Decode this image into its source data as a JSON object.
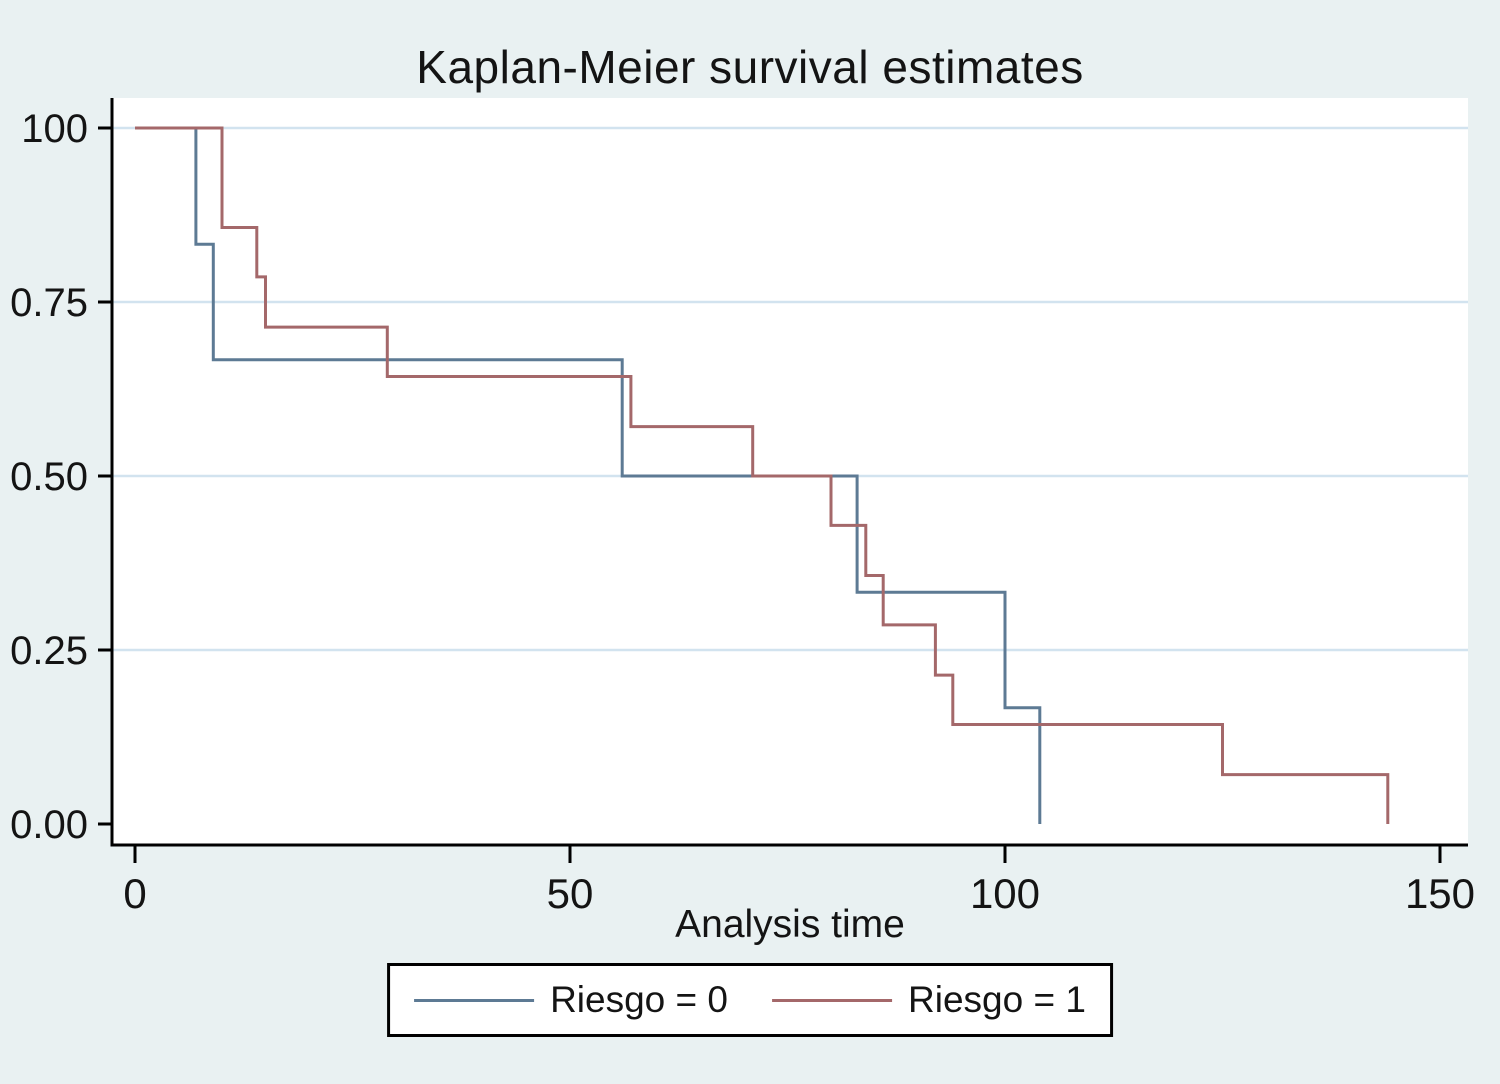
{
  "chart_data": {
    "type": "line",
    "subtype": "kaplan-meier-step",
    "title": "Kaplan-Meier survival estimates",
    "xlabel": "Analysis time",
    "ylabel": "",
    "xlim": [
      0,
      150
    ],
    "ylim": [
      0,
      1
    ],
    "x_ticks": [
      0,
      50,
      100,
      150
    ],
    "y_ticks": [
      {
        "value": 1.0,
        "label": "100"
      },
      {
        "value": 0.75,
        "label": "0.75"
      },
      {
        "value": 0.5,
        "label": "0.50"
      },
      {
        "value": 0.25,
        "label": "0.25"
      },
      {
        "value": 0.0,
        "label": "0.00"
      }
    ],
    "grid": "horizontal",
    "legend_position": "bottom",
    "series": [
      {
        "name": "Riesgo = 0",
        "color": "#5d7a94",
        "points": [
          [
            0,
            1.0
          ],
          [
            7,
            1.0
          ],
          [
            7,
            0.833
          ],
          [
            9,
            0.833
          ],
          [
            9,
            0.667
          ],
          [
            56,
            0.667
          ],
          [
            56,
            0.5
          ],
          [
            83,
            0.5
          ],
          [
            83,
            0.333
          ],
          [
            100,
            0.333
          ],
          [
            100,
            0.167
          ],
          [
            104,
            0.167
          ],
          [
            104,
            0.0
          ]
        ]
      },
      {
        "name": "Riesgo = 1",
        "color": "#a4686a",
        "points": [
          [
            0,
            1.0
          ],
          [
            10,
            1.0
          ],
          [
            10,
            0.857
          ],
          [
            14,
            0.857
          ],
          [
            14,
            0.786
          ],
          [
            15,
            0.786
          ],
          [
            15,
            0.714
          ],
          [
            29,
            0.714
          ],
          [
            29,
            0.643
          ],
          [
            57,
            0.643
          ],
          [
            57,
            0.571
          ],
          [
            71,
            0.571
          ],
          [
            71,
            0.5
          ],
          [
            80,
            0.5
          ],
          [
            80,
            0.429
          ],
          [
            84,
            0.429
          ],
          [
            84,
            0.357
          ],
          [
            86,
            0.357
          ],
          [
            86,
            0.286
          ],
          [
            92,
            0.286
          ],
          [
            92,
            0.214
          ],
          [
            94,
            0.214
          ],
          [
            94,
            0.143
          ],
          [
            125,
            0.143
          ],
          [
            125,
            0.071
          ],
          [
            144,
            0.071
          ],
          [
            144,
            0.0
          ]
        ]
      }
    ],
    "colors": {
      "background": "#e9f1f2",
      "plot_background": "#ffffff",
      "gridline": "#d2e3ef",
      "axis": "#000000",
      "text": "#141414"
    }
  }
}
